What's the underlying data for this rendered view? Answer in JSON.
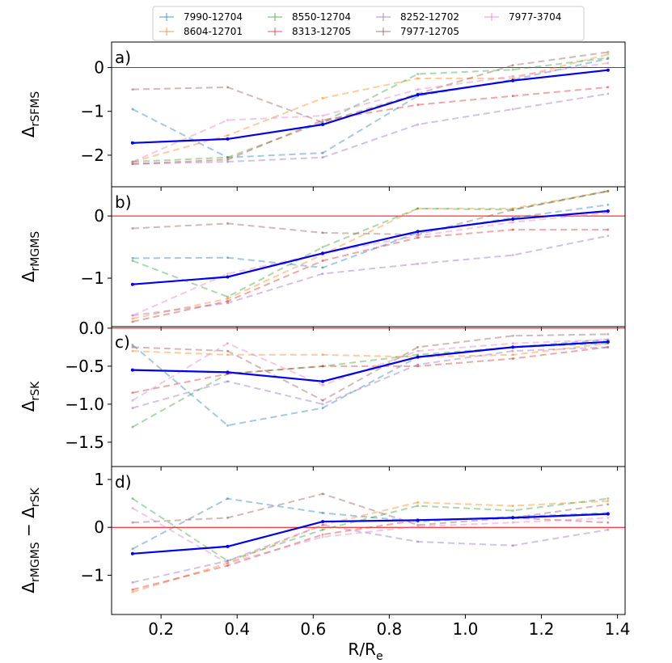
{
  "chart_data": {
    "type": "line",
    "xlabel_main": "R/R",
    "xlabel_sub": "e",
    "xlim": [
      0.07,
      1.42
    ],
    "x_ticks": [
      0.2,
      0.4,
      0.6,
      0.8,
      1.0,
      1.2,
      1.4
    ],
    "x_tick_labels": [
      "0.2",
      "0.4",
      "0.6",
      "0.8",
      "1.0",
      "1.2",
      "1.4"
    ],
    "x": [
      0.125,
      0.375,
      0.625,
      0.875,
      1.125,
      1.375
    ],
    "colors": {
      "7990-12704": "#1f77b4",
      "8604-12701": "#ff7f0e",
      "8550-12704": "#2ca02c",
      "8313-12705": "#d62728",
      "8252-12702": "#9467bd",
      "7977-12705": "#8c564b",
      "7977-3704": "#e377c2",
      "mean": "#0000ee",
      "zero_line": "#ff0000"
    },
    "legend": [
      {
        "name": "7990-12704"
      },
      {
        "name": "8604-12701"
      },
      {
        "name": "8550-12704"
      },
      {
        "name": "8313-12705"
      },
      {
        "name": "8252-12702"
      },
      {
        "name": "7977-12705"
      },
      {
        "name": "7977-3704"
      }
    ],
    "panels": [
      {
        "label": "a)",
        "ylabel_main": "Δ",
        "ylabel_sub": "rSFMS",
        "ylim": [
          -2.72,
          0.58
        ],
        "y_ticks": [
          0,
          -1,
          -2
        ],
        "y_tick_labels": [
          "0",
          "−1",
          "−2"
        ],
        "series": [
          {
            "name": "7990-12704",
            "values": [
              -0.95,
              -2.05,
              -1.95,
              -0.65,
              -0.28,
              0.2
            ]
          },
          {
            "name": "8604-12701",
            "values": [
              -2.15,
              -1.55,
              -0.7,
              -0.25,
              -0.25,
              0.3
            ]
          },
          {
            "name": "8550-12704",
            "values": [
              -2.15,
              -2.05,
              -1.25,
              -0.15,
              -0.05,
              0.22
            ]
          },
          {
            "name": "8313-12705",
            "values": [
              -2.2,
              -2.1,
              -1.2,
              -0.85,
              -0.65,
              -0.45
            ]
          },
          {
            "name": "8252-12702",
            "values": [
              -2.2,
              -2.15,
              -2.05,
              -1.3,
              -0.95,
              -0.6
            ]
          },
          {
            "name": "7977-12705",
            "values": [
              -0.5,
              -0.45,
              -1.25,
              -0.6,
              0.05,
              0.35
            ]
          },
          {
            "name": "7977-3704",
            "values": [
              -2.15,
              -1.2,
              -1.1,
              -0.5,
              -0.2,
              0.1
            ]
          },
          {
            "name": "mean",
            "values": [
              -1.72,
              -1.63,
              -1.3,
              -0.62,
              -0.3,
              -0.06
            ]
          }
        ]
      },
      {
        "label": "b)",
        "ylabel_main": "Δ",
        "ylabel_sub": "rMGMS",
        "ylim": [
          -1.78,
          0.47
        ],
        "y_ticks": [
          0,
          -1
        ],
        "y_tick_labels": [
          "0",
          "−1"
        ],
        "series": [
          {
            "name": "7990-12704",
            "values": [
              -0.68,
              -0.67,
              -0.83,
              -0.27,
              -0.03,
              0.18
            ]
          },
          {
            "name": "8604-12701",
            "values": [
              -1.65,
              -1.33,
              -0.62,
              0.12,
              0.12,
              0.4
            ]
          },
          {
            "name": "8550-12704",
            "values": [
              -0.72,
              -1.3,
              -0.5,
              0.12,
              0.1,
              0.4
            ]
          },
          {
            "name": "8313-12705",
            "values": [
              -1.7,
              -1.37,
              -0.72,
              -0.35,
              -0.22,
              -0.22
            ]
          },
          {
            "name": "8252-12702",
            "values": [
              -1.6,
              -1.4,
              -0.93,
              -0.77,
              -0.63,
              -0.32
            ]
          },
          {
            "name": "7977-12705",
            "values": [
              -0.2,
              -0.12,
              -0.27,
              -0.3,
              0.1,
              0.4
            ]
          },
          {
            "name": "7977-3704",
            "values": [
              -1.6,
              -0.93,
              -0.6,
              -0.32,
              -0.1,
              0.05
            ]
          },
          {
            "name": "mean",
            "values": [
              -1.1,
              -0.98,
              -0.6,
              -0.25,
              -0.05,
              0.08
            ]
          }
        ]
      },
      {
        "label": "c)",
        "ylabel_main": "Δ",
        "ylabel_sub": "rSK",
        "ylim": [
          -1.82,
          0.02
        ],
        "y_ticks": [
          0,
          -0.5,
          -1.0,
          -1.5
        ],
        "y_tick_labels": [
          "0.0",
          "−0.5",
          "−1.0",
          "−1.5"
        ],
        "series": [
          {
            "name": "7990-12704",
            "values": [
              -0.22,
              -1.28,
              -1.05,
              -0.38,
              -0.25,
              -0.15
            ]
          },
          {
            "name": "8604-12701",
            "values": [
              -0.3,
              -0.35,
              -0.35,
              -0.38,
              -0.35,
              -0.2
            ]
          },
          {
            "name": "8550-12704",
            "values": [
              -1.3,
              -0.6,
              -0.5,
              -0.35,
              -0.25,
              -0.2
            ]
          },
          {
            "name": "8313-12705",
            "values": [
              -0.85,
              -0.6,
              -0.5,
              -0.5,
              -0.4,
              -0.25
            ]
          },
          {
            "name": "8252-12702",
            "values": [
              -1.05,
              -0.7,
              -1.0,
              -0.48,
              -0.3,
              -0.25
            ]
          },
          {
            "name": "7977-12705",
            "values": [
              -0.25,
              -0.3,
              -0.95,
              -0.25,
              -0.1,
              -0.08
            ]
          },
          {
            "name": "7977-3704",
            "values": [
              -0.95,
              -0.2,
              -0.75,
              -0.3,
              -0.2,
              -0.15
            ]
          },
          {
            "name": "mean",
            "values": [
              -0.55,
              -0.58,
              -0.7,
              -0.38,
              -0.25,
              -0.18
            ]
          }
        ]
      },
      {
        "label": "d)",
        "ylabel_main": "Δ",
        "ylabel_sub": "rMGMS",
        "ylabel_mid": " − Δ",
        "ylabel_sub2": "rSK",
        "ylim": [
          -1.82,
          1.27
        ],
        "y_ticks": [
          1,
          0,
          -1
        ],
        "y_tick_labels": [
          "1",
          "0",
          "−1"
        ],
        "series": [
          {
            "name": "7990-12704",
            "values": [
              -0.45,
              0.6,
              0.3,
              0.12,
              0.22,
              0.3
            ]
          },
          {
            "name": "8604-12701",
            "values": [
              -1.35,
              -0.75,
              0.05,
              0.52,
              0.45,
              0.55
            ]
          },
          {
            "name": "8550-12704",
            "values": [
              0.6,
              -0.7,
              -0.05,
              0.45,
              0.35,
              0.6
            ]
          },
          {
            "name": "8313-12705",
            "values": [
              -1.3,
              -0.8,
              -0.15,
              0.15,
              0.2,
              0.1
            ]
          },
          {
            "name": "8252-12702",
            "values": [
              -1.15,
              -0.7,
              0.05,
              -0.3,
              -0.38,
              -0.05
            ]
          },
          {
            "name": "7977-12705",
            "values": [
              0.1,
              0.2,
              0.7,
              0.05,
              0.2,
              0.48
            ]
          },
          {
            "name": "7977-3704",
            "values": [
              0.4,
              -0.75,
              -0.2,
              0.02,
              0.1,
              0.2
            ]
          },
          {
            "name": "mean",
            "values": [
              -0.55,
              -0.4,
              0.12,
              0.15,
              0.2,
              0.28
            ]
          }
        ]
      }
    ]
  }
}
